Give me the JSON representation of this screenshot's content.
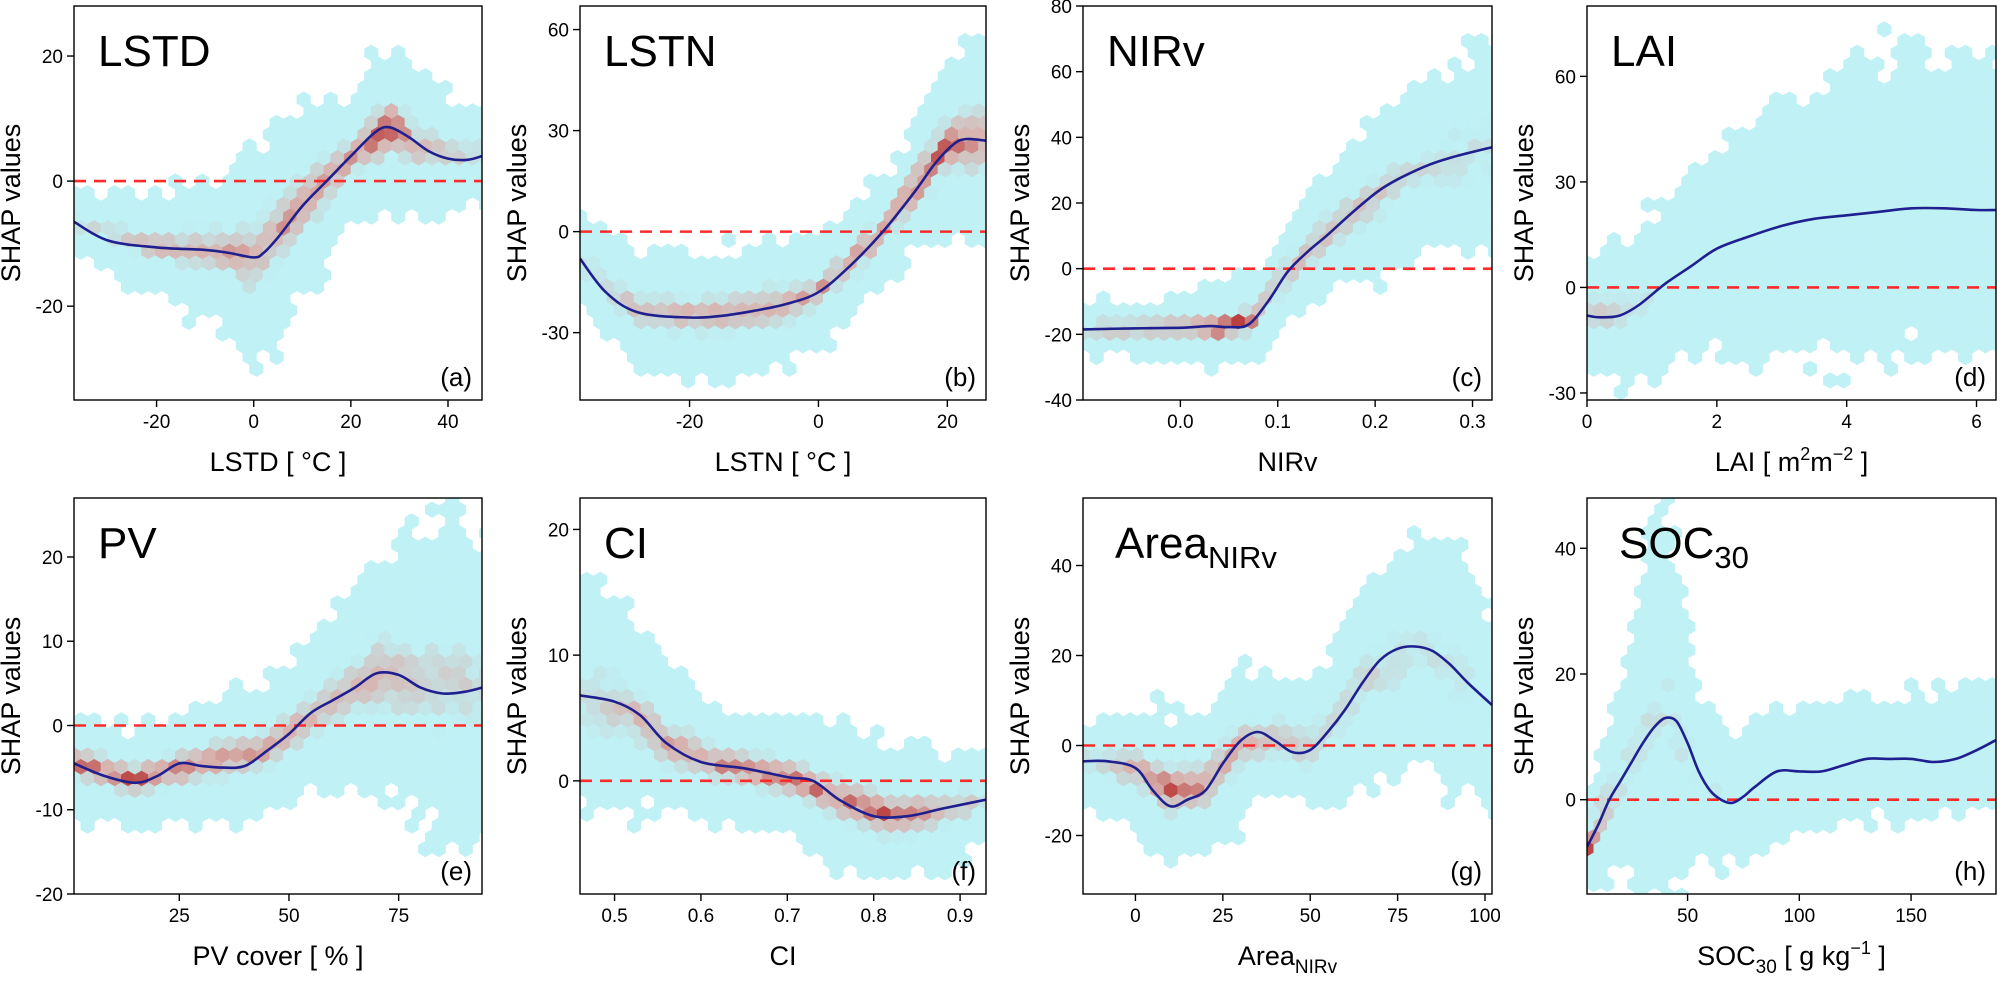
{
  "figure": {
    "y_axis_label": "SHAP values",
    "colors": {
      "hex_low": "#bff1f5",
      "hex_mid": "#d8b4b0",
      "hex_high": "#b22222",
      "smooth_line": "#1f1f8f",
      "zero_line": "#ff2a2a",
      "frame": "#000000"
    }
  },
  "chart_data": [
    {
      "id": "a",
      "type": "scatter",
      "title": "LSTD",
      "title_sub": "",
      "letter": "(a)",
      "xlabel": "LSTD [ °C ]",
      "xlabel_sub": "",
      "xlabel_sup": "",
      "xlabel_after": "",
      "xlabel_sup2": "",
      "xlabel_end": "",
      "ylabel": "SHAP values",
      "xlim": [
        -37,
        47
      ],
      "ylim": [
        -35,
        28
      ],
      "xticks": [
        -20,
        0,
        20,
        40
      ],
      "xtick_labels": [
        "-20",
        "0",
        "20",
        "40"
      ],
      "yticks": [
        -20,
        0,
        20
      ],
      "ytick_labels": [
        "-20",
        "0",
        "20"
      ],
      "smooth": {
        "x": [
          -37,
          -30,
          -20,
          -10,
          -5,
          0,
          2,
          5,
          10,
          15,
          20,
          25,
          28,
          32,
          36,
          40,
          44,
          47
        ],
        "y": [
          -6.5,
          -9.5,
          -10.6,
          -11,
          -11.5,
          -12.2,
          -11.5,
          -9,
          -4,
          0,
          4,
          7.8,
          8.6,
          7,
          4.8,
          3.6,
          3.4,
          4
        ]
      },
      "density": {
        "x": [
          -37,
          -20,
          -5,
          0,
          10,
          20,
          28,
          35,
          47
        ],
        "center": [
          -6.5,
          -10.6,
          -11.5,
          -12,
          -4,
          4,
          8.6,
          5,
          4
        ],
        "half_width": [
          6,
          8,
          13,
          20,
          16,
          10,
          14,
          11,
          8
        ],
        "core": [
          0.25,
          0.55,
          0.6,
          0.55,
          0.7,
          0.7,
          1.0,
          0.5,
          0.3
        ]
      }
    },
    {
      "id": "b",
      "type": "scatter",
      "title": "LSTN",
      "title_sub": "",
      "letter": "(b)",
      "xlabel": "LSTN [ °C ]",
      "xlabel_sub": "",
      "xlabel_sup": "",
      "xlabel_after": "",
      "xlabel_sup2": "",
      "xlabel_end": "",
      "ylabel": "SHAP values",
      "xlim": [
        -37,
        26
      ],
      "ylim": [
        -50,
        67
      ],
      "xticks": [
        -20,
        0,
        20
      ],
      "xtick_labels": [
        "-20",
        "0",
        "20"
      ],
      "yticks": [
        -30,
        0,
        30,
        60
      ],
      "ytick_labels": [
        "-30",
        "0",
        "30",
        "60"
      ],
      "smooth": {
        "x": [
          -37,
          -33,
          -28,
          -20,
          -15,
          -10,
          -5,
          0,
          5,
          10,
          15,
          18,
          21,
          23,
          26
        ],
        "y": [
          -8,
          -18,
          -24,
          -25.5,
          -25,
          -23.5,
          -21.5,
          -18,
          -10,
          0,
          12,
          20,
          26,
          27.5,
          27
        ]
      },
      "density": {
        "x": [
          -37,
          -28,
          -15,
          -5,
          0,
          10,
          20,
          26
        ],
        "center": [
          -8,
          -24,
          -25,
          -21.5,
          -18,
          0,
          26,
          27
        ],
        "half_width": [
          14,
          18,
          20,
          20,
          18,
          16,
          26,
          34
        ],
        "core": [
          0.2,
          0.5,
          0.6,
          0.6,
          0.6,
          0.7,
          0.9,
          0.6
        ]
      }
    },
    {
      "id": "c",
      "type": "scatter",
      "title": "NIRv",
      "title_sub": "",
      "letter": "(c)",
      "xlabel": "NIRv",
      "xlabel_sub": "",
      "xlabel_sup": "",
      "xlabel_after": "",
      "xlabel_sup2": "",
      "xlabel_end": "",
      "ylabel": "SHAP values",
      "xlim": [
        -0.1,
        0.32
      ],
      "ylim": [
        -40,
        80
      ],
      "xticks": [
        0,
        0.1,
        0.2,
        0.3
      ],
      "xtick_labels": [
        "0.0",
        "0.1",
        "0.2",
        "0.3"
      ],
      "yticks": [
        -40,
        -20,
        0,
        20,
        40,
        60,
        80
      ],
      "ytick_labels": [
        "-40",
        "-20",
        "0",
        "20",
        "40",
        "60",
        "80"
      ],
      "smooth": {
        "x": [
          -0.1,
          -0.05,
          0,
          0.03,
          0.05,
          0.07,
          0.09,
          0.11,
          0.13,
          0.15,
          0.18,
          0.21,
          0.25,
          0.28,
          0.32
        ],
        "y": [
          -18.5,
          -18.2,
          -18,
          -17.5,
          -17.8,
          -17,
          -10,
          -1,
          5,
          10,
          18,
          25,
          31,
          34,
          37
        ]
      },
      "density": {
        "x": [
          -0.1,
          0,
          0.04,
          0.08,
          0.11,
          0.15,
          0.2,
          0.25,
          0.32
        ],
        "center": [
          -18.5,
          -18,
          -18,
          -15,
          -1,
          10,
          22,
          31,
          37
        ],
        "half_width": [
          8,
          10,
          12,
          14,
          16,
          20,
          25,
          28,
          32
        ],
        "core": [
          0.5,
          0.65,
          1.0,
          0.8,
          0.6,
          0.55,
          0.4,
          0.3,
          0.2
        ]
      }
    },
    {
      "id": "d",
      "type": "scatter",
      "title": "LAI",
      "title_sub": "",
      "letter": "(d)",
      "xlabel": "LAI [ m",
      "xlabel_sub": "",
      "xlabel_sup": "2",
      "xlabel_after": "m",
      "xlabel_sup2": "−2",
      "xlabel_end": " ]",
      "ylabel": "SHAP values",
      "xlim": [
        0,
        6.3
      ],
      "ylim": [
        -32,
        80
      ],
      "xticks": [
        0,
        2,
        4,
        6
      ],
      "xtick_labels": [
        "0",
        "2",
        "4",
        "6"
      ],
      "yticks": [
        -30,
        0,
        30,
        60
      ],
      "ytick_labels": [
        "-30",
        "0",
        "30",
        "60"
      ],
      "smooth": {
        "x": [
          0,
          0.2,
          0.5,
          0.8,
          1.2,
          1.6,
          2,
          2.5,
          3,
          3.5,
          4,
          4.5,
          5,
          5.5,
          6,
          6.3
        ],
        "y": [
          -8,
          -8.5,
          -8,
          -5,
          1,
          6,
          11,
          14.5,
          17.5,
          19.5,
          20.5,
          21.5,
          22.5,
          22.5,
          22,
          22
        ]
      },
      "density": {
        "x": [
          0,
          0.5,
          1,
          2,
          3,
          4,
          5,
          6.3
        ],
        "center": [
          -8,
          -8,
          -2,
          11,
          17,
          20,
          25,
          22
        ],
        "half_width": [
          16,
          20,
          24,
          30,
          36,
          42,
          44,
          38
        ],
        "core": [
          0.45,
          0.35,
          0.15,
          0.05,
          0.0,
          0.0,
          0.0,
          0.0
        ]
      }
    },
    {
      "id": "e",
      "type": "scatter",
      "title": "PV",
      "title_sub": "",
      "letter": "(e)",
      "xlabel": "PV cover [ % ]",
      "xlabel_sub": "",
      "xlabel_sup": "",
      "xlabel_after": "",
      "xlabel_sup2": "",
      "xlabel_end": "",
      "ylabel": "SHAP values",
      "xlim": [
        1,
        94
      ],
      "ylim": [
        -20,
        27
      ],
      "xticks": [
        25,
        50,
        75
      ],
      "xtick_labels": [
        "25",
        "50",
        "75"
      ],
      "yticks": [
        -20,
        -10,
        0,
        10,
        20
      ],
      "ytick_labels": [
        "-20",
        "-10",
        "0",
        "10",
        "20"
      ],
      "smooth": {
        "x": [
          1,
          8,
          15,
          20,
          25,
          30,
          35,
          40,
          45,
          50,
          55,
          60,
          65,
          70,
          75,
          80,
          85,
          90,
          94
        ],
        "y": [
          -4.5,
          -6,
          -6.8,
          -6,
          -4.5,
          -4.8,
          -5,
          -4.8,
          -3,
          -1,
          1.5,
          3,
          4.5,
          6.2,
          6,
          4.5,
          3.8,
          4,
          4.5
        ]
      },
      "density": {
        "x": [
          1,
          15,
          30,
          45,
          60,
          70,
          80,
          88,
          94
        ],
        "center": [
          -4.5,
          -6.5,
          -4.5,
          -3,
          3,
          6,
          5,
          5,
          4.5
        ],
        "half_width": [
          6,
          6,
          7,
          8,
          10,
          14,
          18,
          20,
          16
        ],
        "core": [
          0.8,
          0.85,
          0.7,
          0.7,
          0.5,
          0.6,
          0.4,
          0.35,
          0.3
        ]
      }
    },
    {
      "id": "f",
      "type": "scatter",
      "title": "CI",
      "title_sub": "",
      "letter": "(f)",
      "xlabel": "CI",
      "xlabel_sub": "",
      "xlabel_sup": "",
      "xlabel_after": "",
      "xlabel_sup2": "",
      "xlabel_end": "",
      "ylabel": "SHAP values",
      "xlim": [
        0.46,
        0.93
      ],
      "ylim": [
        -9,
        22.5
      ],
      "xticks": [
        0.5,
        0.6,
        0.7,
        0.8,
        0.9
      ],
      "xtick_labels": [
        "0.5",
        "0.6",
        "0.7",
        "0.8",
        "0.9"
      ],
      "yticks": [
        0,
        10,
        20
      ],
      "ytick_labels": [
        "0",
        "10",
        "20"
      ],
      "smooth": {
        "x": [
          0.46,
          0.5,
          0.53,
          0.56,
          0.6,
          0.65,
          0.7,
          0.73,
          0.76,
          0.8,
          0.84,
          0.88,
          0.93
        ],
        "y": [
          6.8,
          6.3,
          5.2,
          3,
          1.5,
          1,
          0.3,
          0,
          -1.5,
          -2.8,
          -2.8,
          -2.2,
          -1.5
        ]
      },
      "density": {
        "x": [
          0.46,
          0.52,
          0.56,
          0.62,
          0.7,
          0.76,
          0.82,
          0.88,
          0.93
        ],
        "center": [
          6.8,
          5.5,
          3,
          1.3,
          0.3,
          -1.5,
          -2.8,
          -2.4,
          -1.5
        ],
        "half_width": [
          9,
          8,
          6,
          4.5,
          4.5,
          6,
          5.5,
          5,
          4
        ],
        "core": [
          0.3,
          0.5,
          0.6,
          0.7,
          0.8,
          0.7,
          0.85,
          0.5,
          0.3
        ]
      }
    },
    {
      "id": "g",
      "type": "scatter",
      "title": "Area",
      "title_sub": "NIRv",
      "letter": "(g)",
      "xlabel": "Area",
      "xlabel_sub": "NIRv",
      "xlabel_sup": "",
      "xlabel_after": "",
      "xlabel_sup2": "",
      "xlabel_end": "",
      "ylabel": "SHAP values",
      "xlim": [
        -15,
        102
      ],
      "ylim": [
        -33,
        55
      ],
      "xticks": [
        0,
        25,
        50,
        75,
        100
      ],
      "xtick_labels": [
        "0",
        "25",
        "50",
        "75",
        "100"
      ],
      "yticks": [
        -20,
        0,
        20,
        40
      ],
      "ytick_labels": [
        "-20",
        "0",
        "20",
        "40"
      ],
      "smooth": {
        "x": [
          -15,
          -8,
          0,
          5,
          10,
          15,
          20,
          25,
          30,
          35,
          40,
          45,
          50,
          55,
          60,
          65,
          70,
          75,
          80,
          85,
          90,
          95,
          102
        ],
        "y": [
          -3.5,
          -3.5,
          -5,
          -10,
          -13.5,
          -12,
          -10,
          -4,
          1,
          3,
          1,
          -1.5,
          -1,
          3,
          8,
          14,
          19,
          21.5,
          22,
          21,
          18,
          14,
          9
        ]
      },
      "density": {
        "x": [
          -15,
          0,
          10,
          20,
          30,
          40,
          50,
          65,
          80,
          92,
          102
        ],
        "center": [
          -3.5,
          -5,
          -10,
          -9,
          0,
          2,
          -1,
          14,
          22,
          16,
          9
        ],
        "half_width": [
          8,
          14,
          18,
          16,
          18,
          14,
          14,
          22,
          28,
          28,
          22
        ],
        "core": [
          0.35,
          0.6,
          0.85,
          0.7,
          0.6,
          0.5,
          0.4,
          0.3,
          0.25,
          0.2,
          0.15
        ]
      }
    },
    {
      "id": "h",
      "type": "scatter",
      "title": "SOC",
      "title_sub": "30",
      "letter": "(h)",
      "xlabel": "SOC",
      "xlabel_sub": "30",
      "xlabel_sup": "",
      "xlabel_after": " [ g kg",
      "xlabel_sup2": "−1",
      "xlabel_end": " ]",
      "ylabel": "SHAP values",
      "xlim": [
        5,
        188
      ],
      "ylim": [
        -15,
        48
      ],
      "xticks": [
        50,
        100,
        150
      ],
      "xtick_labels": [
        "50",
        "100",
        "150"
      ],
      "yticks": [
        0,
        20,
        40
      ],
      "ytick_labels": [
        "0",
        "20",
        "40"
      ],
      "smooth": {
        "x": [
          5,
          10,
          15,
          20,
          25,
          30,
          35,
          40,
          45,
          50,
          55,
          60,
          65,
          70,
          75,
          80,
          90,
          100,
          110,
          120,
          130,
          140,
          150,
          160,
          170,
          180,
          188
        ],
        "y": [
          -7.5,
          -4,
          0,
          3,
          6,
          9,
          11.5,
          13,
          12.5,
          9,
          4.5,
          1.5,
          0,
          -0.5,
          0.5,
          2,
          4.5,
          4.5,
          4.5,
          5.5,
          6.5,
          6.5,
          6.5,
          6,
          6.5,
          8,
          9.5
        ]
      },
      "density": {
        "x": [
          5,
          12,
          20,
          32,
          42,
          55,
          70,
          100,
          140,
          188
        ],
        "center": [
          -7.5,
          -2,
          3,
          12,
          13,
          4,
          0,
          4.5,
          6.5,
          9.5
        ],
        "half_width": [
          8,
          12,
          14,
          30,
          32,
          12,
          12,
          10,
          10,
          10
        ],
        "core": [
          1.0,
          0.5,
          0.25,
          0.2,
          0.2,
          0.15,
          0.1,
          0.05,
          0.05,
          0.05
        ]
      }
    }
  ]
}
